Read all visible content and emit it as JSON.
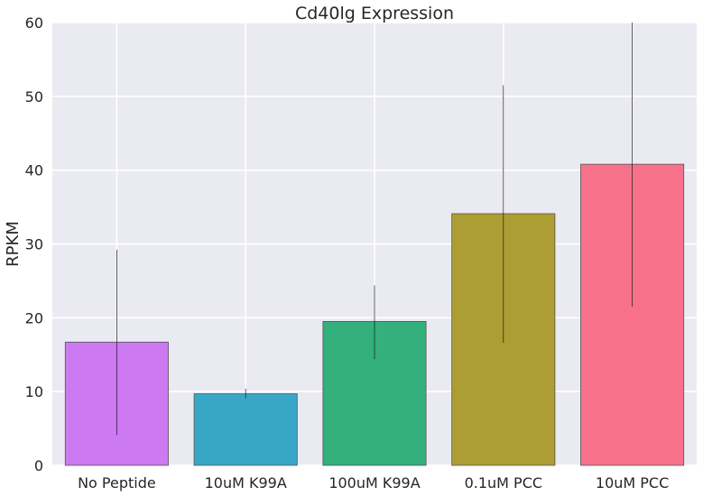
{
  "chart_data": {
    "type": "bar",
    "title": "Cd40lg Expression",
    "xlabel": "",
    "ylabel": "RPKM",
    "ylim": [
      0,
      60
    ],
    "yticks": [
      0,
      10,
      20,
      30,
      40,
      50,
      60
    ],
    "grid": true,
    "categories": [
      "No Peptide",
      "10uM K99A",
      "100uM K99A",
      "0.1uM PCC",
      "10uM PCC"
    ],
    "values": [
      16.7,
      9.7,
      19.5,
      34.1,
      40.8
    ],
    "error_low": [
      4.1,
      9.1,
      14.4,
      16.6,
      21.5
    ],
    "error_high": [
      29.2,
      10.4,
      24.4,
      51.5,
      60.0
    ],
    "colors": [
      "#cc79f2",
      "#38a7c5",
      "#33b07b",
      "#ad9e33",
      "#f7718a"
    ]
  }
}
